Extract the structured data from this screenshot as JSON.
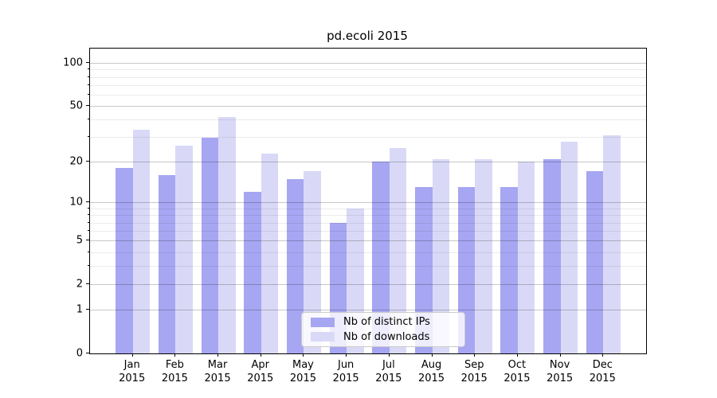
{
  "title": "pd.ecoli 2015",
  "chart_data": {
    "type": "bar",
    "title": "pd.ecoli 2015",
    "categories": [
      "Jan",
      "Feb",
      "Mar",
      "Apr",
      "May",
      "Jun",
      "Jul",
      "Aug",
      "Sep",
      "Oct",
      "Nov",
      "Dec"
    ],
    "category_year": "2015",
    "series": [
      {
        "name": "Nb of distinct IPs",
        "color": "#a6a6f2",
        "values": [
          18,
          16,
          30,
          12,
          15,
          7,
          20,
          13,
          13,
          13,
          21,
          17
        ]
      },
      {
        "name": "Nb of downloads",
        "color": "#d9d9f7",
        "values": [
          34,
          26,
          42,
          23,
          17,
          9,
          25,
          21,
          21,
          20,
          28,
          31
        ]
      }
    ],
    "xlabel": "",
    "ylabel": "",
    "yscale": "log1p",
    "ylim": [
      0,
      126
    ],
    "y_ticks": [
      0,
      1,
      2,
      5,
      10,
      20,
      50,
      100
    ],
    "y_minor_ticks": [
      3,
      4,
      6,
      7,
      8,
      9,
      30,
      40,
      60,
      70,
      80,
      90
    ],
    "grid": true,
    "legend_position": "lower center"
  }
}
